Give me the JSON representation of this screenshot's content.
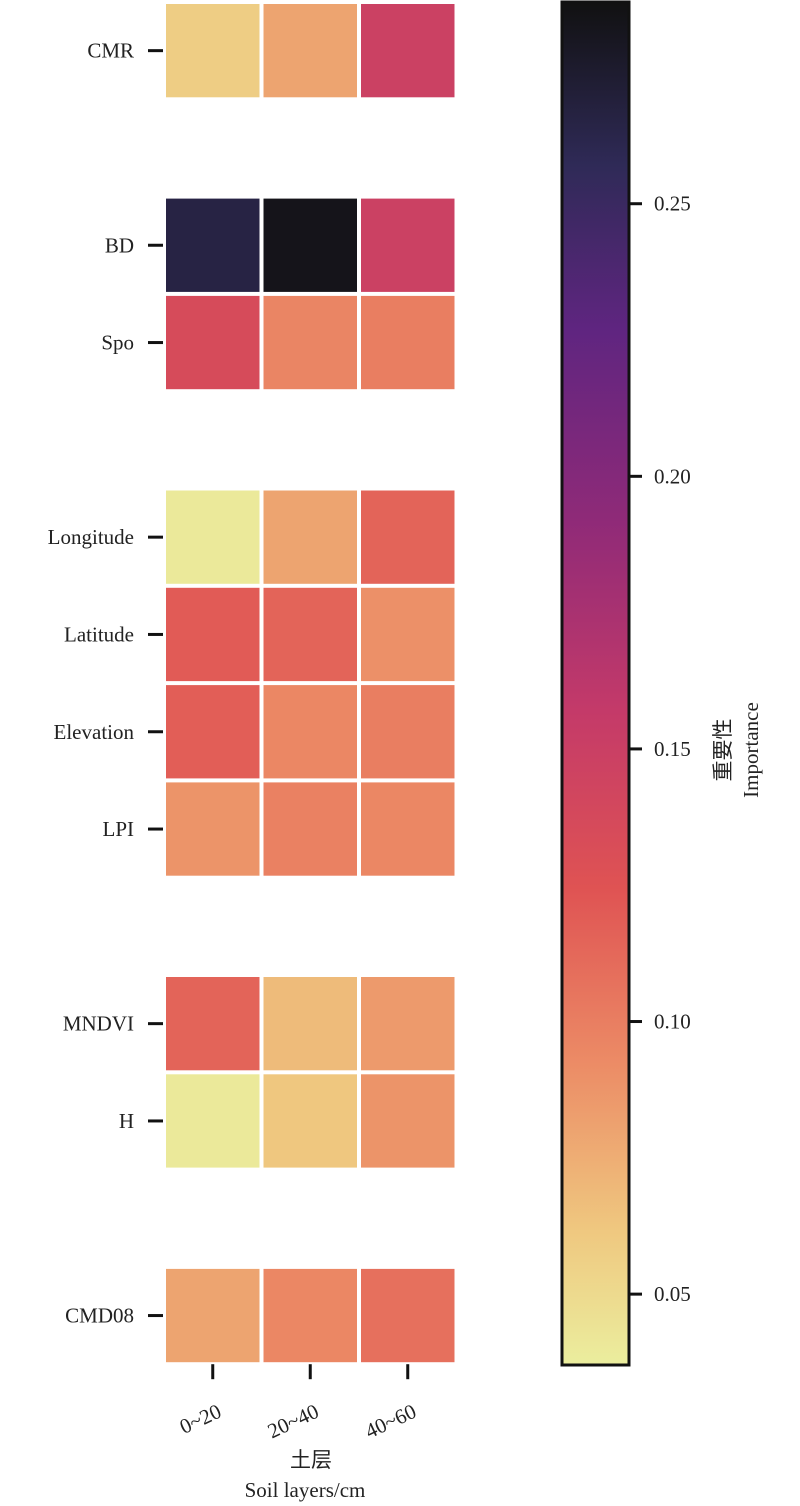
{
  "chart_data": {
    "type": "heatmap",
    "columns": [
      "0~20",
      "20~40",
      "40~60"
    ],
    "rows": [
      {
        "label": "CMR",
        "values": [
          0.058,
          0.08,
          0.148
        ]
      },
      {
        "label": "",
        "values": null
      },
      {
        "label": "BD",
        "values": [
          0.265,
          0.283,
          0.148
        ]
      },
      {
        "label": "Spo",
        "values": [
          0.135,
          0.096,
          0.1
        ]
      },
      {
        "label": "",
        "values": null
      },
      {
        "label": "Longitude",
        "values": [
          0.04,
          0.08,
          0.115
        ]
      },
      {
        "label": "Latitude",
        "values": [
          0.12,
          0.115,
          0.09
        ]
      },
      {
        "label": "Elevation",
        "values": [
          0.118,
          0.095,
          0.1
        ]
      },
      {
        "label": "LPI",
        "values": [
          0.088,
          0.098,
          0.095
        ]
      },
      {
        "label": "",
        "values": null
      },
      {
        "label": "MNDVI",
        "values": [
          0.115,
          0.068,
          0.085
        ]
      },
      {
        "label": "H",
        "values": [
          0.04,
          0.062,
          0.088
        ]
      },
      {
        "label": "",
        "values": null
      },
      {
        "label": "CMD08",
        "values": [
          0.08,
          0.095,
          0.108
        ]
      }
    ],
    "xlabel": "土层",
    "xlabel_en": "Soil layers/cm",
    "colorbar": {
      "label": "重要性",
      "label_en": "Importance",
      "range": [
        0.037,
        0.287
      ],
      "ticks": [
        0.05,
        0.1,
        0.15,
        0.2,
        0.25
      ],
      "tick_labels": [
        "0.05",
        "0.10",
        "0.15",
        "0.20",
        "0.25"
      ],
      "colormap": "magma_r"
    }
  }
}
